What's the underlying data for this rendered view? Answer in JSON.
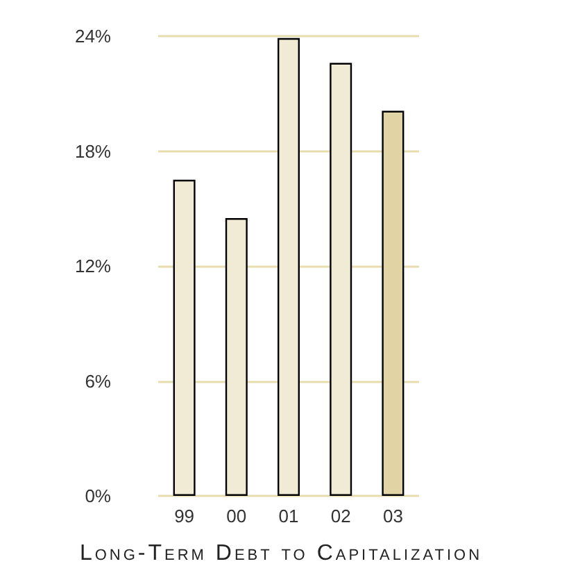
{
  "chart_data": {
    "type": "bar",
    "title": "Long-Term Debt to Capitalization",
    "categories": [
      "99",
      "00",
      "01",
      "02",
      "03"
    ],
    "values": [
      16.5,
      14.5,
      23.9,
      22.6,
      20.1
    ],
    "colors": [
      "#f1ead4",
      "#f1ead4",
      "#f1ead4",
      "#f1ead4",
      "#e1d4a4"
    ],
    "ylim": [
      0,
      24
    ],
    "yticks": [
      {
        "value": 0,
        "label": "0%"
      },
      {
        "value": 6,
        "label": "6%"
      },
      {
        "value": 12,
        "label": "12%"
      },
      {
        "value": 18,
        "label": "18%"
      },
      {
        "value": 24,
        "label": "24%"
      }
    ],
    "grid": "y"
  }
}
